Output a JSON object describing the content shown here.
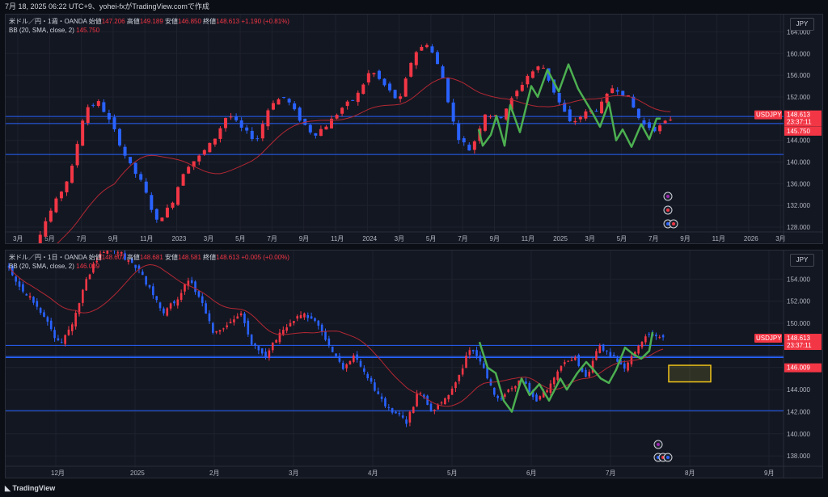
{
  "header": {
    "text": "7月 18, 2025 06:22 UTC+9、yohei-fxがTradingView.comで作成"
  },
  "panel1": {
    "symbol": "米ドル／円・1週・OANDA",
    "o_label": "始値",
    "o": "147.206",
    "h_label": "高値",
    "h": "149.189",
    "l_label": "安値",
    "l": "146.850",
    "c_label": "終値",
    "c": "148.613",
    "change": "+1.190 (+0.81%)",
    "bb": "BB (20, SMA, close, 2)",
    "bb_val": "145.750",
    "currency": "JPY",
    "price_ticks": [
      "164.000",
      "160.000",
      "156.000",
      "152.000",
      "148.000",
      "144.000",
      "140.000",
      "136.000",
      "132.000",
      "128.000"
    ],
    "time_ticks": [
      "3月",
      "5月",
      "7月",
      "9月",
      "11月",
      "2023",
      "3月",
      "5月",
      "7月",
      "9月",
      "11月",
      "2024",
      "3月",
      "5月",
      "7月",
      "9月",
      "11月",
      "2025",
      "3月",
      "5月",
      "7月",
      "9月",
      "11月",
      "2026",
      "3月"
    ],
    "tag_symbol": "USDJPY",
    "tag_price": "148.613",
    "tag_timer": "23:37:11",
    "tag_bb": "145.750"
  },
  "panel2": {
    "symbol": "米ドル／円・1日・OANDA",
    "o_label": "始値",
    "o": "148.607",
    "h_label": "高値",
    "h": "148.681",
    "l_label": "安値",
    "l": "148.581",
    "c_label": "終値",
    "c": "148.613",
    "change": "+0.005 (+0.00%)",
    "bb": "BB (20, SMA, close, 2)",
    "bb_val": "146.009",
    "currency": "JPY",
    "price_ticks": [
      "154.000",
      "152.000",
      "150.000",
      "148.000",
      "146.000",
      "144.000",
      "142.000",
      "140.000",
      "138.000"
    ],
    "time_ticks": [
      "12月",
      "2025",
      "2月",
      "3月",
      "4月",
      "5月",
      "6月",
      "7月",
      "8月",
      "9月"
    ],
    "tag_symbol": "USDJPY",
    "tag_price": "148.613",
    "tag_timer": "23:37:11",
    "tag_bb": "146.009"
  },
  "footer": {
    "brand": "TradingView"
  },
  "colors": {
    "up": "#f23645",
    "down": "#2962ff",
    "bb": "#b22833",
    "wave": "#4caf50",
    "hline": "#2962ff"
  }
}
